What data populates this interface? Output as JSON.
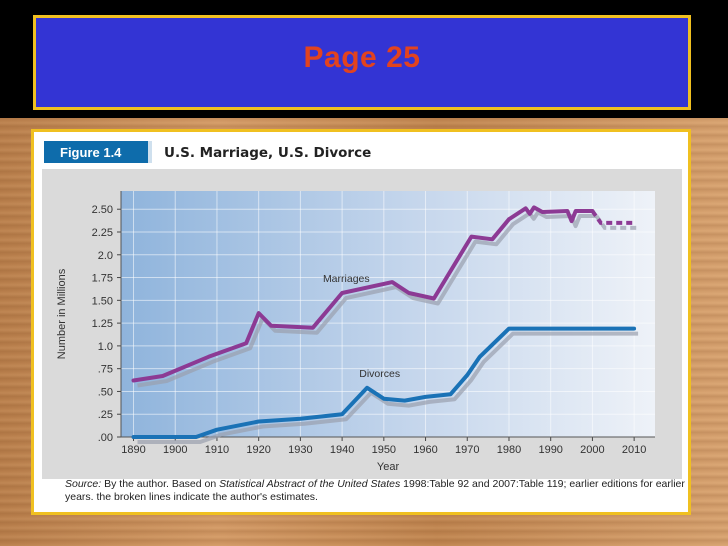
{
  "slide": {
    "title": "Page 25",
    "colors": {
      "title_bg": "#3334d4",
      "title_text": "#e2431f",
      "frame": "#f0c020"
    }
  },
  "figure": {
    "label": "Figure 1.4",
    "title": "U.S. Marriage, U.S. Divorce",
    "source_prefix": "Source:",
    "source_text": " By the author. Based on ",
    "source_italic": "Statistical Abstract of the United States",
    "source_rest": " 1998:Table 92 and 2007:Table 119; earlier editions for earlier years. the broken lines indicate the author's estimates."
  },
  "chart_data": {
    "type": "line",
    "title": "U.S. Marriage, U.S. Divorce",
    "xlabel": "Year",
    "ylabel": "Number in Millions",
    "xlim": [
      1887,
      2015
    ],
    "ylim": [
      0,
      2.7
    ],
    "x_ticks": [
      1890,
      1900,
      1910,
      1920,
      1930,
      1940,
      1950,
      1960,
      1970,
      1980,
      1990,
      2000,
      2010
    ],
    "y_ticks": [
      0,
      0.25,
      0.5,
      0.75,
      1.0,
      1.25,
      1.5,
      1.75,
      2.0,
      2.25,
      2.5
    ],
    "y_tick_labels": [
      ".00",
      ".25",
      ".50",
      ".75",
      "1.0",
      "1.25",
      "1.50",
      "1.75",
      "2.0",
      "2.25",
      "2.50"
    ],
    "series": [
      {
        "name": "Marriages",
        "color": "#8c3a94",
        "x": [
          1890,
          1897,
          1908,
          1917,
          1920,
          1923,
          1933,
          1940,
          1952,
          1956,
          1962,
          1971,
          1976,
          1980,
          1984,
          1985,
          1986,
          1988,
          1994,
          1995,
          1996,
          2000
        ],
        "y": [
          0.62,
          0.67,
          0.88,
          1.03,
          1.36,
          1.22,
          1.2,
          1.58,
          1.7,
          1.58,
          1.52,
          2.2,
          2.17,
          2.39,
          2.51,
          2.45,
          2.52,
          2.47,
          2.48,
          2.37,
          2.48,
          2.48
        ],
        "estimated": {
          "x": [
            2000,
            2002,
            2010
          ],
          "y": [
            2.48,
            2.35,
            2.35
          ]
        }
      },
      {
        "name": "Divorces",
        "color": "#1a72b6",
        "x": [
          1890,
          1905,
          1910,
          1920,
          1930,
          1940,
          1946,
          1950,
          1955,
          1960,
          1966,
          1970,
          1973,
          1980,
          2010
        ],
        "y": [
          0.0,
          0.0,
          0.08,
          0.17,
          0.2,
          0.25,
          0.54,
          0.42,
          0.4,
          0.44,
          0.47,
          0.68,
          0.88,
          1.19,
          1.19
        ]
      }
    ],
    "labels": [
      {
        "text": "Marriages",
        "x": 1941,
        "y": 1.7
      },
      {
        "text": "Divorces",
        "x": 1949,
        "y": 0.66
      }
    ]
  }
}
